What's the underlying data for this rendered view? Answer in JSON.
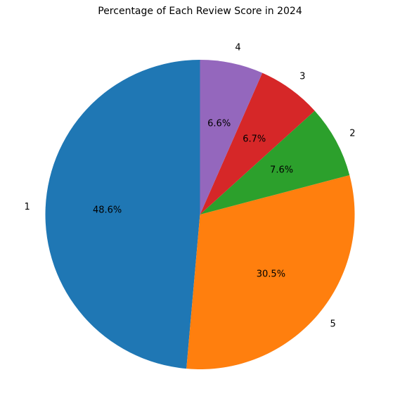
{
  "chart_data": {
    "type": "pie",
    "title": "Percentage of Each Review Score in 2024",
    "slices": [
      {
        "label": "1",
        "value": 48.6,
        "pct_label": "48.6%",
        "color": "#1f77b4"
      },
      {
        "label": "5",
        "value": 30.5,
        "pct_label": "30.5%",
        "color": "#ff7f0e"
      },
      {
        "label": "2",
        "value": 7.6,
        "pct_label": "7.6%",
        "color": "#2ca02c"
      },
      {
        "label": "3",
        "value": 6.7,
        "pct_label": "6.7%",
        "color": "#d62728"
      },
      {
        "label": "4",
        "value": 6.6,
        "pct_label": "6.6%",
        "color": "#9467bd"
      }
    ],
    "start_angle_deg": 90,
    "direction": "counterclockwise"
  }
}
